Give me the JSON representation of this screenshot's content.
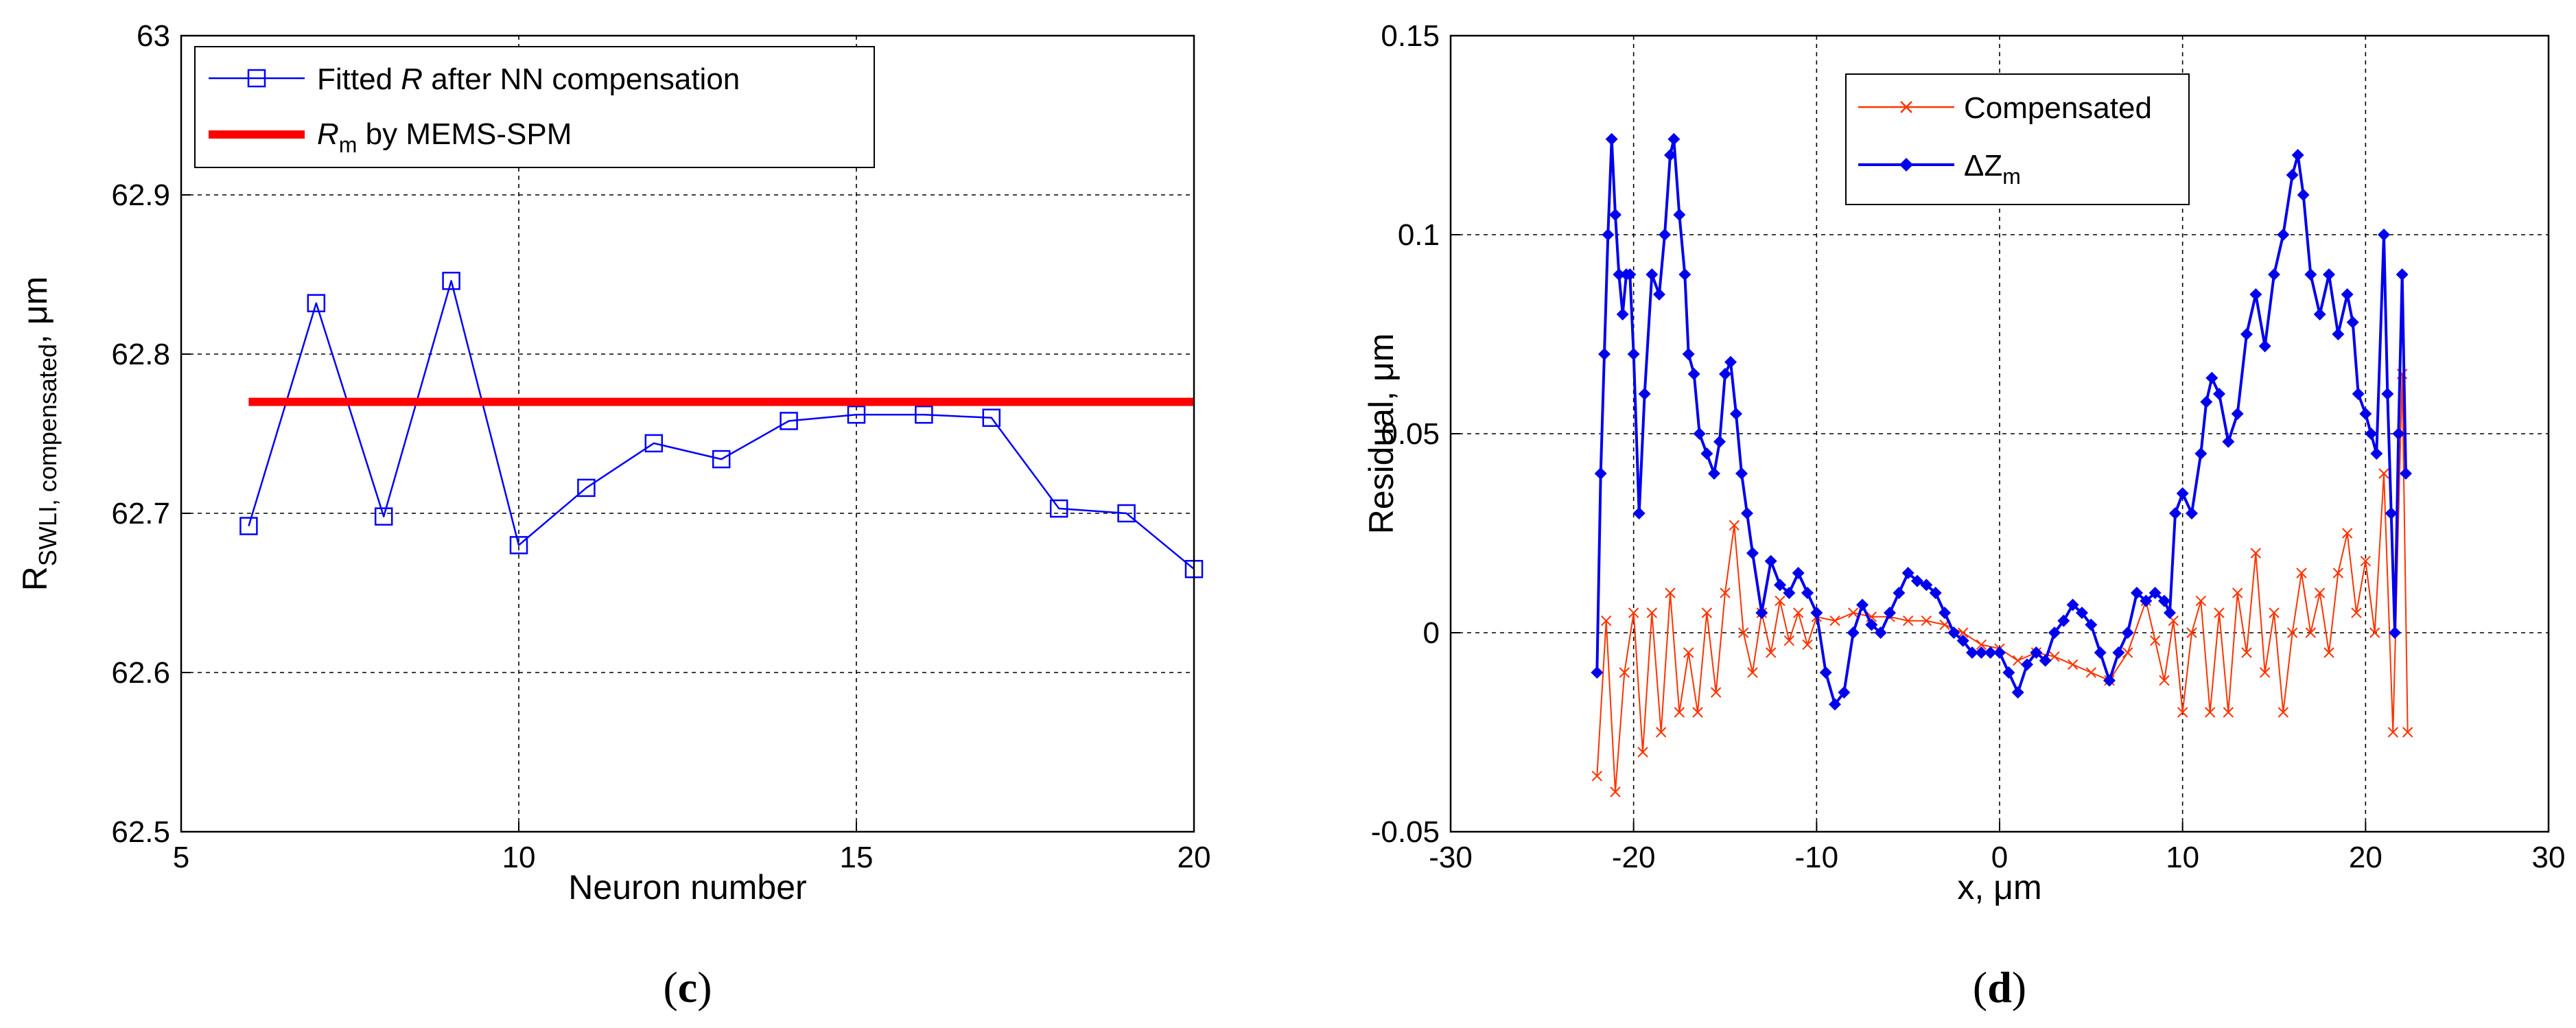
{
  "chart_data": [
    {
      "type": "line",
      "panel_label": {
        "open": "(",
        "letter": "c",
        "close": ")"
      },
      "xlabel": "Neuron number",
      "ylabel": {
        "main": "R",
        "sub": "SWLI, compensated",
        "suffix": ", μm"
      },
      "xlim": [
        5,
        20
      ],
      "ylim": [
        62.5,
        63
      ],
      "xticks": [
        "5",
        "10",
        "15",
        "20"
      ],
      "yticks": [
        "62.5",
        "62.6",
        "62.7",
        "62.8",
        "62.9",
        "63"
      ],
      "grid": true,
      "legend_position": "top-left",
      "series": [
        {
          "legend": {
            "pre": "Fitted ",
            "italic": "R",
            "post": " after NN compensation"
          },
          "color": "#0000ff",
          "marker": "square",
          "x": [
            6,
            7,
            8,
            9,
            10,
            11,
            12,
            13,
            14,
            15,
            16,
            17,
            18,
            19,
            20
          ],
          "y": [
            62.692,
            62.832,
            62.698,
            62.846,
            62.68,
            62.716,
            62.744,
            62.734,
            62.758,
            62.762,
            62.762,
            62.76,
            62.703,
            62.7,
            62.665
          ]
        },
        {
          "legend": {
            "italic": "R",
            "sub": "m",
            "post": " by MEMS-SPM"
          },
          "color": "#ff0000",
          "marker": "none",
          "x": [
            6,
            20
          ],
          "y": [
            62.77,
            62.77
          ]
        }
      ]
    },
    {
      "type": "line",
      "panel_label": {
        "open": "(",
        "letter": "d",
        "close": ")"
      },
      "xlabel": "x, μm",
      "ylabel": "Residual, μm",
      "xlim": [
        -30,
        30
      ],
      "ylim": [
        -0.05,
        0.15
      ],
      "xticks": [
        "-30",
        "-20",
        "-10",
        "0",
        "10",
        "20",
        "30"
      ],
      "yticks": [
        "-0.05",
        "0",
        "0.05",
        "0.1",
        "0.15"
      ],
      "grid": true,
      "legend_position": "top-center",
      "series": [
        {
          "legend": "Compensated",
          "color": "#ff3300",
          "marker": "x",
          "x": [
            -22,
            -21.5,
            -21,
            -20.5,
            -20,
            -19.5,
            -19,
            -18.5,
            -18,
            -17.5,
            -17,
            -16.5,
            -16,
            -15.5,
            -15,
            -14.5,
            -14,
            -13.5,
            -13,
            -12.5,
            -12,
            -11.5,
            -11,
            -10.5,
            -10,
            -9,
            -8,
            -7,
            -6,
            -5,
            -4,
            -3,
            -2,
            -1,
            0,
            1,
            2,
            3,
            4,
            5,
            6,
            7,
            8,
            8.5,
            9,
            9.5,
            10,
            10.5,
            11,
            11.5,
            12,
            12.5,
            13,
            13.5,
            14,
            14.5,
            15,
            15.5,
            16,
            16.5,
            17,
            17.5,
            18,
            18.5,
            19,
            19.5,
            20,
            20.5,
            21,
            21.5,
            22,
            22.3
          ],
          "y": [
            -0.036,
            0.003,
            -0.04,
            -0.01,
            0.005,
            -0.03,
            0.005,
            -0.025,
            0.01,
            -0.02,
            -0.005,
            -0.02,
            0.005,
            -0.015,
            0.01,
            0.027,
            0.0,
            -0.01,
            0.005,
            -0.005,
            0.008,
            -0.002,
            0.005,
            -0.003,
            0.004,
            0.003,
            0.005,
            0.004,
            0.004,
            0.003,
            0.003,
            0.002,
            0.0,
            -0.003,
            -0.004,
            -0.007,
            -0.005,
            -0.006,
            -0.008,
            -0.01,
            -0.012,
            -0.005,
            0.008,
            -0.002,
            -0.012,
            0.003,
            -0.02,
            0.0,
            0.008,
            -0.02,
            0.005,
            -0.02,
            0.01,
            -0.005,
            0.02,
            -0.01,
            0.005,
            -0.02,
            0.0,
            0.015,
            0.0,
            0.01,
            -0.005,
            0.015,
            0.025,
            0.005,
            0.018,
            0.0,
            0.04,
            -0.025,
            0.065,
            -0.025
          ]
        },
        {
          "legend": {
            "pre": "ΔZ",
            "sub": "m"
          },
          "color": "#0000ee",
          "marker": "diamond",
          "x": [
            -22,
            -21.8,
            -21.6,
            -21.4,
            -21.2,
            -21,
            -20.8,
            -20.6,
            -20.4,
            -20.2,
            -20,
            -19.7,
            -19.4,
            -19,
            -18.6,
            -18.3,
            -18,
            -17.8,
            -17.5,
            -17.2,
            -17,
            -16.7,
            -16.4,
            -16,
            -15.6,
            -15.3,
            -15,
            -14.7,
            -14.4,
            -14.1,
            -13.8,
            -13.5,
            -13,
            -12.5,
            -12,
            -11.5,
            -11,
            -10.5,
            -10,
            -9.5,
            -9,
            -8.5,
            -8,
            -7.5,
            -7,
            -6.5,
            -6,
            -5.5,
            -5,
            -4.5,
            -4,
            -3.5,
            -3,
            -2.5,
            -2,
            -1.5,
            -1,
            -0.5,
            0,
            0.5,
            1,
            1.5,
            2,
            2.5,
            3,
            3.5,
            4,
            4.5,
            5,
            5.5,
            6,
            6.5,
            7,
            7.5,
            8,
            8.5,
            9,
            9.3,
            9.6,
            10,
            10.5,
            11,
            11.3,
            11.6,
            12,
            12.5,
            13,
            13.5,
            14,
            14.5,
            15,
            15.5,
            16,
            16.3,
            16.6,
            17,
            17.5,
            18,
            18.5,
            19,
            19.3,
            19.6,
            20,
            20.3,
            20.6,
            21,
            21.2,
            21.4,
            21.6,
            21.8,
            22,
            22.2
          ],
          "y": [
            -0.01,
            0.04,
            0.07,
            0.1,
            0.124,
            0.105,
            0.09,
            0.08,
            0.09,
            0.09,
            0.07,
            0.03,
            0.06,
            0.09,
            0.085,
            0.1,
            0.12,
            0.124,
            0.105,
            0.09,
            0.07,
            0.065,
            0.05,
            0.045,
            0.04,
            0.048,
            0.065,
            0.068,
            0.055,
            0.04,
            0.03,
            0.02,
            0.005,
            0.018,
            0.012,
            0.01,
            0.015,
            0.01,
            0.005,
            -0.01,
            -0.018,
            -0.015,
            0.0,
            0.007,
            0.002,
            0.0,
            0.005,
            0.01,
            0.015,
            0.013,
            0.012,
            0.01,
            0.005,
            0.0,
            -0.002,
            -0.005,
            -0.005,
            -0.005,
            -0.005,
            -0.01,
            -0.015,
            -0.008,
            -0.005,
            -0.007,
            0.0,
            0.003,
            0.007,
            0.005,
            0.002,
            -0.005,
            -0.012,
            -0.005,
            0.0,
            0.01,
            0.008,
            0.01,
            0.008,
            0.005,
            0.03,
            0.035,
            0.03,
            0.045,
            0.058,
            0.064,
            0.06,
            0.048,
            0.055,
            0.075,
            0.085,
            0.072,
            0.09,
            0.1,
            0.115,
            0.12,
            0.11,
            0.09,
            0.08,
            0.09,
            0.075,
            0.085,
            0.078,
            0.06,
            0.055,
            0.05,
            0.045,
            0.1,
            0.06,
            0.03,
            0.0,
            0.05,
            0.09,
            0.04
          ]
        }
      ]
    }
  ]
}
